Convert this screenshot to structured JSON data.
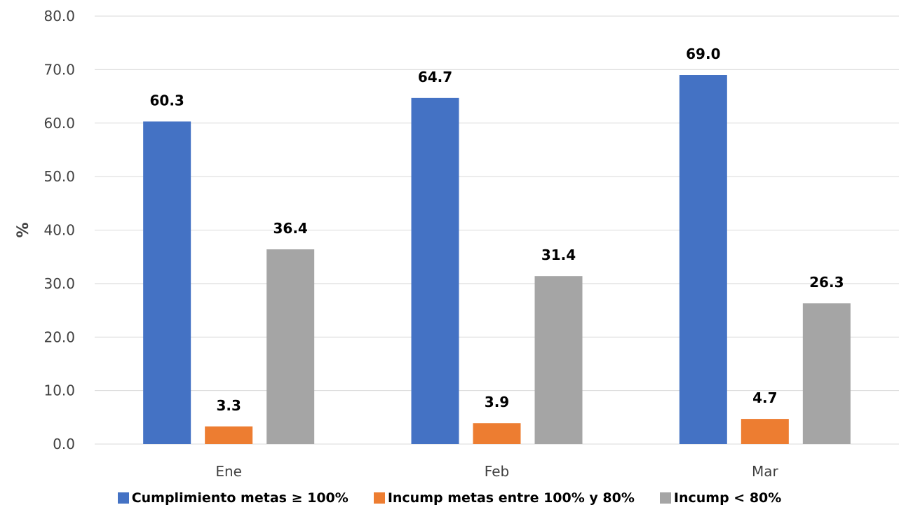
{
  "chart_data": {
    "type": "bar",
    "title": "",
    "xlabel": "",
    "ylabel": "%",
    "ylim": [
      0,
      80
    ],
    "yticks": [
      "0.0",
      "10.0",
      "20.0",
      "30.0",
      "40.0",
      "50.0",
      "60.0",
      "70.0",
      "80.0"
    ],
    "grid": "horizontal",
    "legend_position": "bottom",
    "categories": [
      "Ene",
      "Feb",
      "Mar"
    ],
    "series": [
      {
        "name": "Cumplimiento metas ≥ 100%",
        "color": "#4472c4",
        "values": [
          60.3,
          64.7,
          69.0
        ],
        "labels": [
          "60.3",
          "64.7",
          "69.0"
        ]
      },
      {
        "name": "Incump metas entre 100% y 80%",
        "color": "#ed7d31",
        "values": [
          3.3,
          3.9,
          4.7
        ],
        "labels": [
          "3.3",
          "3.9",
          "4.7"
        ]
      },
      {
        "name": "Incump < 80%",
        "color": "#a5a5a5",
        "values": [
          36.4,
          31.4,
          26.3
        ],
        "labels": [
          "36.4",
          "31.4",
          "26.3"
        ]
      }
    ]
  }
}
